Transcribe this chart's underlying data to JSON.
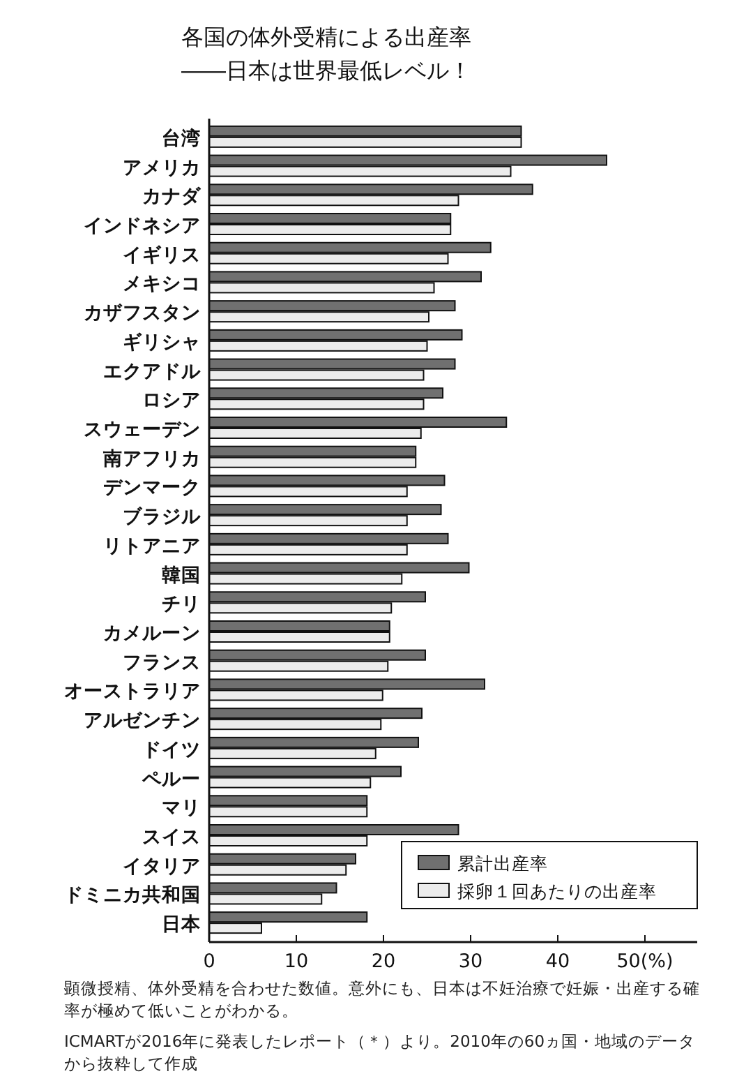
{
  "chart_data": {
    "type": "bar",
    "orientation": "horizontal",
    "title": "各国の体外受精による出産率",
    "subtitle": "――日本は世界最低レベル！",
    "categories": [
      "台湾",
      "アメリカ",
      "カナダ",
      "インドネシア",
      "イギリス",
      "メキシコ",
      "カザフスタン",
      "ギリシャ",
      "エクアドル",
      "ロシア",
      "スウェーデン",
      "南アフリカ",
      "デンマーク",
      "ブラジル",
      "リトアニア",
      "韓国",
      "チリ",
      "カメルーン",
      "フランス",
      "オーストラリア",
      "アルゼンチン",
      "ドイツ",
      "ペルー",
      "マリ",
      "スイス",
      "イタリア",
      "ドミニカ共和国",
      "日本"
    ],
    "series": [
      {
        "name": "累計出産率",
        "color": "#707070",
        "values": [
          35.8,
          45.6,
          37.1,
          27.7,
          32.3,
          31.2,
          28.2,
          29.0,
          28.2,
          26.8,
          34.1,
          23.7,
          27.0,
          26.6,
          27.4,
          29.8,
          24.8,
          20.7,
          24.8,
          31.6,
          24.4,
          24.0,
          22.0,
          18.1,
          28.6,
          16.8,
          14.6,
          18.1
        ]
      },
      {
        "name": "採卵１回あたりの出産率",
        "color": "#ececec",
        "values": [
          35.8,
          34.6,
          28.6,
          27.7,
          27.4,
          25.8,
          25.2,
          25.0,
          24.6,
          24.6,
          24.3,
          23.7,
          22.7,
          22.7,
          22.7,
          22.1,
          20.9,
          20.7,
          20.5,
          19.9,
          19.7,
          19.1,
          18.5,
          18.1,
          18.1,
          15.7,
          12.9,
          6.0
        ]
      }
    ],
    "xlim": [
      0,
      56
    ],
    "xticks": [
      0,
      10,
      20,
      30,
      40,
      {
        "value": 50,
        "label": "50(%)"
      }
    ],
    "legend": "bottom right",
    "annotations": [
      "顕微授精、体外受精を合わせた数値。意外にも、日本は不妊治療で妊娠・出産する確率が極めて低いことがわかる。",
      "ICMARTが2016年に発表したレポート（＊）より。2010年の60ヵ国・地域のデータから抜粋して作成"
    ]
  }
}
